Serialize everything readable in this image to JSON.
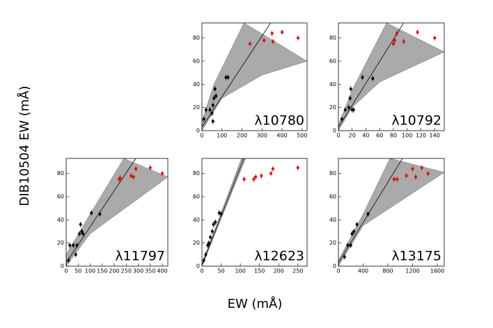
{
  "ylabel": "DIB10504 EW (mÅ)",
  "xlabel": "EW (mÅ)",
  "chart_data": [
    {
      "type": "scatter",
      "annotation": "λ10780",
      "xlim": [
        0,
        525
      ],
      "ylim": [
        0,
        93
      ],
      "xticks": [
        0,
        100,
        200,
        300,
        400,
        500
      ],
      "yticks": [
        0,
        20,
        40,
        60,
        80
      ],
      "band_color": "#aaaaaa",
      "band_upper": {
        "x": [
          0,
          60,
          210
        ],
        "y": [
          8,
          40,
          93
        ]
      },
      "band_lower": {
        "x": [
          0,
          100,
          300,
          525
        ],
        "y": [
          0,
          28,
          48,
          60
        ]
      },
      "fit": {
        "x": [
          0,
          343
        ],
        "y": [
          3,
          93
        ]
      },
      "series": [
        {
          "color": "#000000",
          "x": [
            10,
            20,
            40,
            50,
            55,
            55,
            60,
            65,
            70,
            120,
            130
          ],
          "values": [
            10,
            18,
            18,
            15,
            8,
            22,
            28,
            36,
            30,
            46,
            46
          ]
        },
        {
          "color": "#ee0000",
          "x": [
            240,
            310,
            350,
            355,
            400,
            480
          ],
          "values": [
            75,
            78,
            84,
            77,
            85,
            80
          ]
        }
      ]
    },
    {
      "type": "scatter",
      "annotation": "λ10792",
      "xlim": [
        0,
        154
      ],
      "ylim": [
        0,
        93
      ],
      "xticks": [
        0,
        20,
        40,
        60,
        80,
        100,
        120,
        140
      ],
      "yticks": [
        0,
        20,
        40,
        60,
        80
      ],
      "band_color": "#aaaaaa",
      "band_upper": {
        "x": [
          0,
          20,
          70
        ],
        "y": [
          5,
          35,
          93
        ]
      },
      "band_lower": {
        "x": [
          0,
          20,
          60,
          154
        ],
        "y": [
          0,
          20,
          42,
          68
        ]
      },
      "fit": {
        "x": [
          0,
          95
        ],
        "y": [
          3,
          93
        ]
      },
      "series": [
        {
          "color": "#000000",
          "x": [
            5,
            10,
            15,
            17,
            18,
            20,
            22,
            35,
            50
          ],
          "values": [
            10,
            18,
            20,
            28,
            36,
            18,
            18,
            46,
            45
          ]
        },
        {
          "color": "#ee0000",
          "x": [
            80,
            82,
            85,
            95,
            115,
            140
          ],
          "values": [
            75,
            78,
            84,
            77,
            85,
            80
          ]
        }
      ]
    },
    {
      "type": "scatter",
      "annotation": "λ11797",
      "xlim": [
        0,
        423
      ],
      "ylim": [
        0,
        93
      ],
      "xticks": [
        0,
        50,
        100,
        150,
        200,
        250,
        300,
        350,
        400
      ],
      "yticks": [
        0,
        20,
        40,
        60,
        80
      ],
      "band_color": "#aaaaaa",
      "band_upper": {
        "x": [
          0,
          100,
          240
        ],
        "y": [
          10,
          45,
          93
        ]
      },
      "band_lower": {
        "x": [
          0,
          100,
          423
        ],
        "y": [
          0,
          28,
          77
        ]
      },
      "fit": {
        "x": [
          0,
          290
        ],
        "y": [
          3,
          93
        ]
      },
      "series": [
        {
          "color": "#000000",
          "x": [
            10,
            15,
            30,
            40,
            45,
            55,
            60,
            65,
            70,
            105,
            140
          ],
          "values": [
            5,
            18,
            18,
            10,
            18,
            28,
            36,
            30,
            28,
            46,
            45
          ]
        },
        {
          "color": "#ee0000",
          "x": [
            220,
            225,
            270,
            280,
            290,
            350,
            400
          ],
          "values": [
            75,
            76,
            78,
            77,
            84,
            85,
            80
          ]
        }
      ]
    },
    {
      "type": "scatter",
      "annotation": "λ12623",
      "xlim": [
        0,
        274
      ],
      "ylim": [
        0,
        93
      ],
      "xticks": [
        0,
        50,
        100,
        150,
        200,
        250
      ],
      "yticks": [
        0,
        20,
        40,
        60,
        80
      ],
      "band_color": "#aaaaaa",
      "band_upper": {
        "x": [
          0,
          103
        ],
        "y": [
          2,
          93
        ]
      },
      "band_lower": {
        "x": [
          0,
          114
        ],
        "y": [
          0,
          93
        ]
      },
      "fit": {
        "x": [
          0,
          109
        ],
        "y": [
          1,
          93
        ]
      },
      "series": [
        {
          "color": "#000000",
          "x": [
            5,
            10,
            15,
            18,
            22,
            27,
            30,
            35,
            45,
            50
          ],
          "values": [
            5,
            10,
            18,
            20,
            25,
            30,
            36,
            38,
            46,
            45
          ]
        },
        {
          "color": "#ee0000",
          "x": [
            110,
            135,
            140,
            155,
            180,
            185,
            250
          ],
          "values": [
            75,
            75,
            77,
            78,
            80,
            84,
            85
          ]
        }
      ]
    },
    {
      "type": "scatter",
      "annotation": "λ13175",
      "xlim": [
        0,
        1712
      ],
      "ylim": [
        0,
        93
      ],
      "xticks": [
        0,
        400,
        800,
        1200,
        1600
      ],
      "yticks": [
        0,
        20,
        40,
        60,
        80
      ],
      "band_color": "#aaaaaa",
      "band_upper": {
        "x": [
          0,
          400,
          833
        ],
        "y": [
          5,
          45,
          93
        ]
      },
      "band_lower": {
        "x": [
          0,
          400,
          1712
        ],
        "y": [
          0,
          35,
          81
        ]
      },
      "fit": {
        "x": [
          0,
          1036
        ],
        "y": [
          3,
          93
        ]
      },
      "series": [
        {
          "color": "#000000",
          "x": [
            100,
            150,
            200,
            220,
            250,
            300,
            480
          ],
          "values": [
            8,
            18,
            18,
            28,
            30,
            36,
            45
          ]
        },
        {
          "color": "#ee0000",
          "x": [
            900,
            950,
            1100,
            1200,
            1250,
            1350,
            1450
          ],
          "values": [
            75,
            75,
            78,
            84,
            77,
            85,
            80
          ]
        }
      ]
    }
  ]
}
